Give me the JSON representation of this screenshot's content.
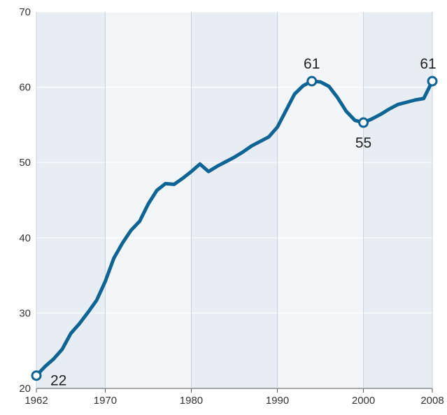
{
  "chart_data": {
    "type": "line",
    "x": [
      1962,
      1963,
      1964,
      1965,
      1966,
      1967,
      1968,
      1969,
      1970,
      1971,
      1972,
      1973,
      1974,
      1975,
      1976,
      1977,
      1978,
      1979,
      1980,
      1981,
      1982,
      1983,
      1984,
      1985,
      1986,
      1987,
      1988,
      1989,
      1990,
      1991,
      1992,
      1993,
      1994,
      1995,
      1996,
      1997,
      1998,
      1999,
      2000,
      2001,
      2002,
      2003,
      2004,
      2005,
      2006,
      2007,
      2008
    ],
    "series": [
      {
        "color": "#0e6494",
        "values": [
          21.7,
          22.9,
          23.9,
          25.2,
          27.3,
          28.6,
          30.1,
          31.7,
          34.2,
          37.3,
          39.3,
          41.0,
          42.2,
          44.5,
          46.3,
          47.2,
          47.1,
          47.9,
          48.8,
          49.8,
          48.8,
          49.5,
          50.1,
          50.7,
          51.4,
          52.2,
          52.8,
          53.4,
          54.7,
          56.9,
          59.1,
          60.2,
          60.8,
          60.7,
          60.1,
          58.6,
          56.8,
          55.6,
          55.3,
          55.8,
          56.4,
          57.1,
          57.7,
          58.0,
          58.3,
          58.5,
          60.8
        ],
        "value_labels": [
          "22",
          null,
          null,
          null,
          null,
          null,
          null,
          null,
          null,
          null,
          null,
          null,
          null,
          null,
          null,
          null,
          null,
          null,
          null,
          null,
          null,
          null,
          null,
          null,
          null,
          null,
          null,
          null,
          null,
          null,
          null,
          null,
          "61",
          null,
          null,
          null,
          null,
          null,
          "55",
          null,
          null,
          null,
          null,
          null,
          null,
          null,
          "61"
        ]
      }
    ],
    "xlim": [
      1962,
      2008
    ],
    "xticks": [
      1962,
      1970,
      1980,
      1990,
      2000,
      2008
    ],
    "ylim": [
      20,
      70
    ],
    "yticks": [
      20,
      30,
      40,
      50,
      60,
      70
    ],
    "grid": true
  }
}
